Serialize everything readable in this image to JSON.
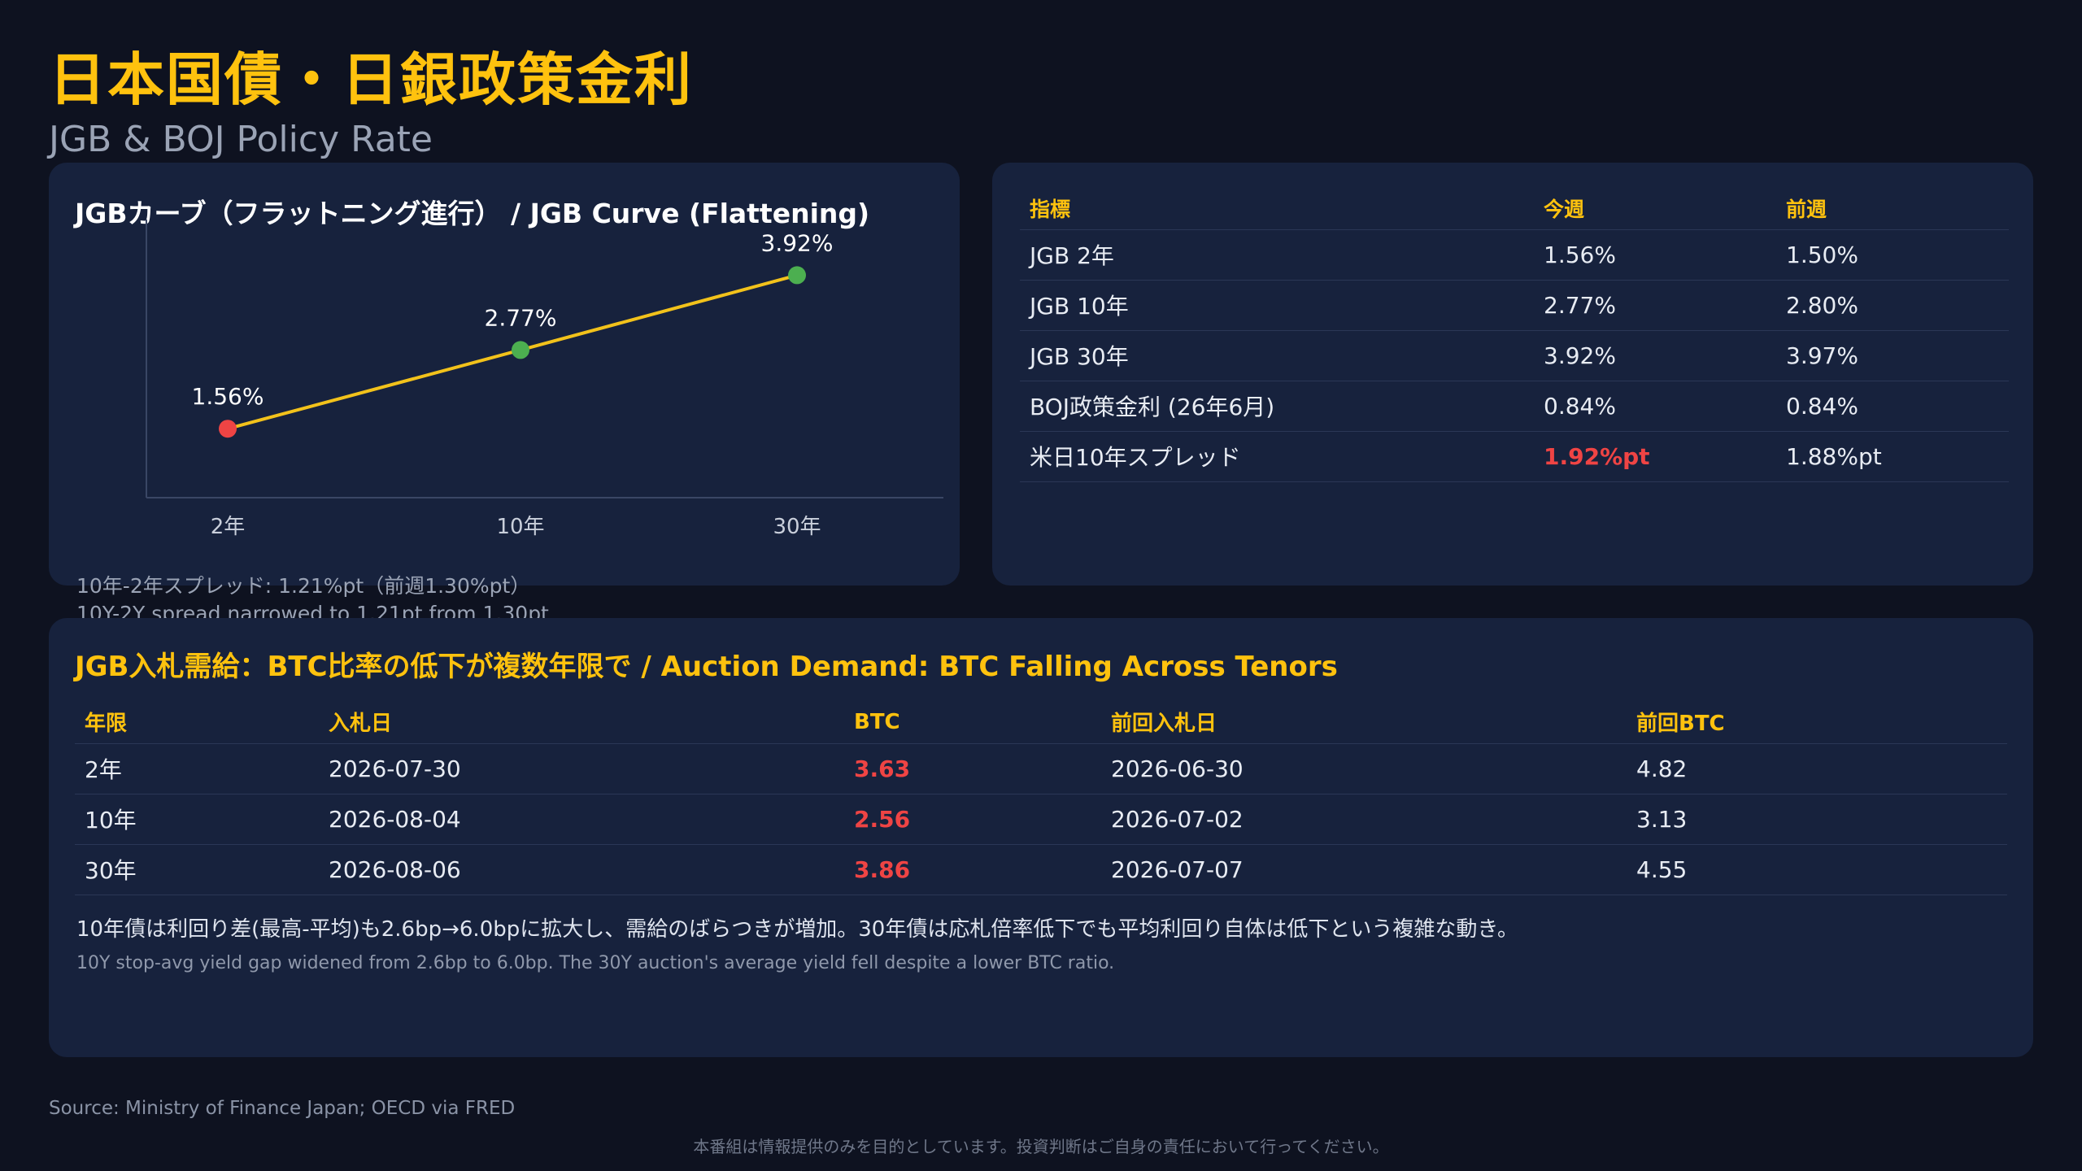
{
  "header": {
    "title": "日本国債・日銀政策金利",
    "subtitle": "JGB & BOJ Policy Rate"
  },
  "curve_panel": {
    "title": "JGBカーブ（フラットニング進行） / JGB Curve (Flattening)",
    "note_jp": "10年-2年スプレッド: 1.21%pt（前週1.30%pt）",
    "note_en": "10Y-2Y spread narrowed to 1.21pt from 1.30pt"
  },
  "chart_data": {
    "type": "line",
    "categories": [
      "2年",
      "10年",
      "30年"
    ],
    "values": [
      1.56,
      2.77,
      3.92
    ],
    "data_labels": [
      "1.56%",
      "2.77%",
      "3.92%"
    ],
    "point_colors": [
      "#ef4444",
      "#4caf50",
      "#4caf50"
    ],
    "line_color": "#f2c21b",
    "title": "JGBカーブ（フラットニング進行） / JGB Curve (Flattening)",
    "xlabel": "",
    "ylabel": "",
    "ylim": [
      0.5,
      4.4
    ],
    "grid": false
  },
  "kpi_table": {
    "headers": [
      "指標",
      "今週",
      "前週"
    ],
    "rows": [
      {
        "name": "JGB 2年",
        "current": "1.56%",
        "previous": "1.50%",
        "highlight": false
      },
      {
        "name": "JGB 10年",
        "current": "2.77%",
        "previous": "2.80%",
        "highlight": false
      },
      {
        "name": "JGB 30年",
        "current": "3.92%",
        "previous": "3.97%",
        "highlight": false
      },
      {
        "name": "BOJ政策金利 (26年6月)",
        "current": "0.84%",
        "previous": "0.84%",
        "highlight": false
      },
      {
        "name": "米日10年スプレッド",
        "current": "1.92%pt",
        "previous": "1.88%pt",
        "highlight": true
      }
    ]
  },
  "auction_panel": {
    "title": "JGB入札需給：BTC比率の低下が複数年限で / Auction Demand: BTC Falling Across Tenors",
    "headers": [
      "年限",
      "入札日",
      "BTC",
      "前回入札日",
      "前回BTC"
    ],
    "rows": [
      {
        "tenor": "2年",
        "date": "2026-07-30",
        "btc": "3.63",
        "prev_date": "2026-06-30",
        "prev_btc": "4.82"
      },
      {
        "tenor": "10年",
        "date": "2026-08-04",
        "btc": "2.56",
        "prev_date": "2026-07-02",
        "prev_btc": "3.13"
      },
      {
        "tenor": "30年",
        "date": "2026-08-06",
        "btc": "3.86",
        "prev_date": "2026-07-07",
        "prev_btc": "4.55"
      }
    ],
    "note_jp": "10年債は利回り差(最高-平均)も2.6bp→6.0bpに拡大し、需給のばらつきが増加。30年債は応札倍率低下でも平均利回り自体は低下という複雑な動き。",
    "note_en": "10Y stop-avg yield gap widened from 2.6bp to 6.0bp. The 30Y auction's average yield fell despite a lower BTC ratio."
  },
  "footer": {
    "source": "Source: Ministry of Finance Japan; OECD via FRED",
    "disclaimer": "本番組は情報提供のみを目的としています。投資判断はご自身の責任において行ってください。"
  },
  "colors": {
    "accent": "#ffc20e",
    "negative": "#ef4444",
    "positive": "#4caf50",
    "panel": "#17223d",
    "background": "#0e1220"
  }
}
